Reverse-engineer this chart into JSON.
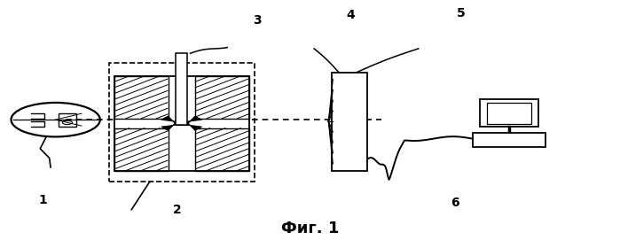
{
  "bg_color": "#ffffff",
  "line_color": "#000000",
  "title": "Фиг. 1",
  "title_fontsize": 13
}
